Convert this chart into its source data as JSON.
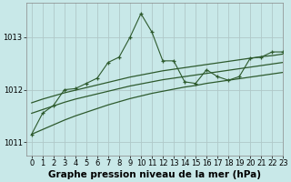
{
  "title": "Graphe pression niveau de la mer (hPa)",
  "bg_color": "#c8e8e8",
  "grid_color": "#b0c8c8",
  "line_color": "#2d5a2d",
  "xlim": [
    -0.5,
    23
  ],
  "ylim": [
    1010.75,
    1013.65
  ],
  "yticks": [
    1011,
    1012,
    1013
  ],
  "xticks": [
    0,
    1,
    2,
    3,
    4,
    5,
    6,
    7,
    8,
    9,
    10,
    11,
    12,
    13,
    14,
    15,
    16,
    17,
    18,
    19,
    20,
    21,
    22,
    23
  ],
  "series": {
    "main": [
      1011.15,
      1011.55,
      1011.7,
      1012.0,
      1012.02,
      1012.12,
      1012.22,
      1012.52,
      1012.62,
      1013.0,
      1013.45,
      1013.1,
      1012.55,
      1012.55,
      1012.15,
      1012.12,
      1012.38,
      1012.25,
      1012.18,
      1012.25,
      1012.6,
      1012.62,
      1012.72,
      1012.72
    ],
    "trend1": [
      1011.75,
      1011.82,
      1011.88,
      1011.94,
      1011.99,
      1012.04,
      1012.09,
      1012.14,
      1012.19,
      1012.24,
      1012.28,
      1012.32,
      1012.36,
      1012.39,
      1012.42,
      1012.45,
      1012.48,
      1012.51,
      1012.54,
      1012.57,
      1012.6,
      1012.63,
      1012.65,
      1012.68
    ],
    "trend2": [
      1011.55,
      1011.62,
      1011.69,
      1011.76,
      1011.82,
      1011.87,
      1011.92,
      1011.97,
      1012.02,
      1012.07,
      1012.11,
      1012.15,
      1012.19,
      1012.22,
      1012.25,
      1012.28,
      1012.31,
      1012.34,
      1012.37,
      1012.4,
      1012.43,
      1012.46,
      1012.49,
      1012.52
    ],
    "trend3": [
      1011.15,
      1011.24,
      1011.33,
      1011.42,
      1011.5,
      1011.57,
      1011.64,
      1011.71,
      1011.77,
      1011.83,
      1011.88,
      1011.93,
      1011.97,
      1012.01,
      1012.05,
      1012.08,
      1012.12,
      1012.15,
      1012.18,
      1012.21,
      1012.24,
      1012.27,
      1012.3,
      1012.33
    ]
  },
  "title_fontsize": 7.5,
  "tick_fontsize": 6.0
}
